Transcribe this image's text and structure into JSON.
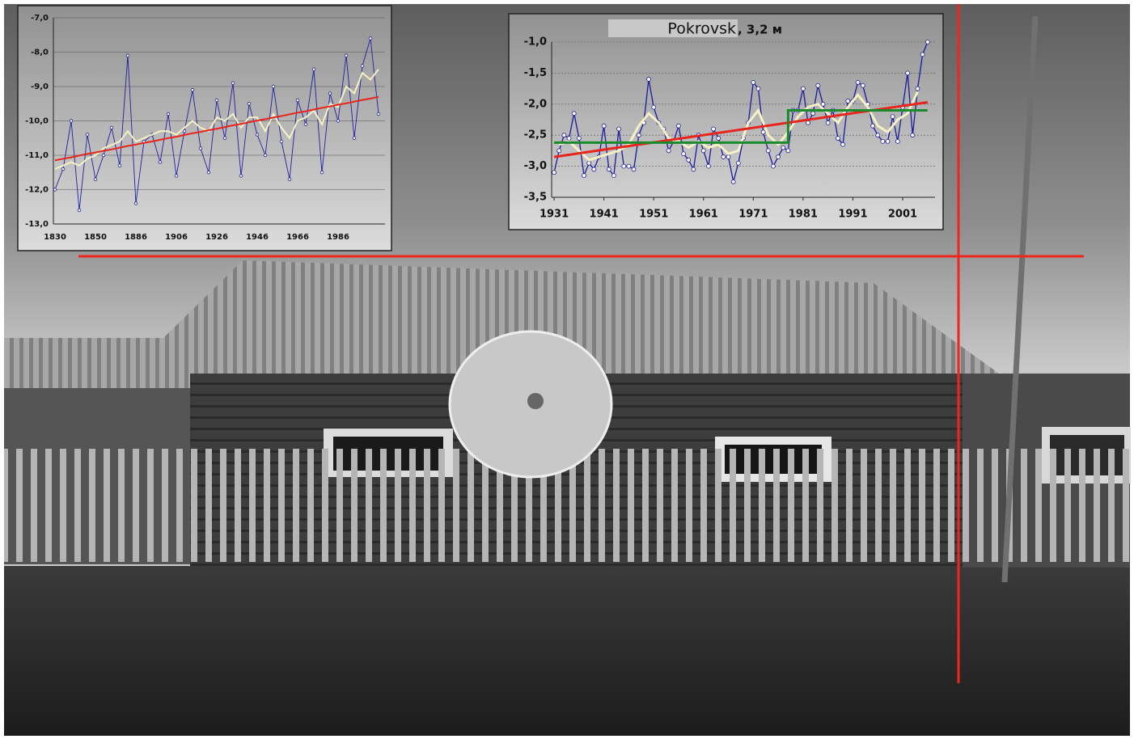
{
  "chart_data": [
    {
      "type": "line",
      "categories": [
        "1830",
        null,
        null,
        null,
        null,
        "1850",
        null,
        null,
        null,
        null,
        "1886",
        null,
        null,
        null,
        null,
        "1906",
        null,
        null,
        null,
        null,
        "1926",
        null,
        null,
        null,
        null,
        "1946",
        null,
        null,
        null,
        null,
        "1966",
        null,
        null,
        null,
        null,
        "1986",
        null,
        null,
        null,
        null,
        null
      ],
      "ylim": [
        -13,
        -7
      ],
      "yticks": [
        {
          "value": -13,
          "label": "-13,0"
        },
        {
          "value": -12,
          "label": "-12,0"
        },
        {
          "value": -11,
          "label": "-11,0"
        },
        {
          "value": -10,
          "label": "-10,0"
        },
        {
          "value": -9,
          "label": "-9,0"
        },
        {
          "value": -8,
          "label": "-8,0"
        },
        {
          "value": -7,
          "label": "-7,0"
        }
      ],
      "grid": true,
      "series": [
        {
          "color": "#1f1f9e",
          "markers": true,
          "values": [
            -12.0,
            -11.4,
            -10.0,
            -12.6,
            -10.4,
            -11.7,
            -11.0,
            -10.2,
            -11.3,
            -8.1,
            -12.4,
            -10.6,
            -10.4,
            -11.2,
            -9.8,
            -11.6,
            -10.3,
            -9.1,
            -10.8,
            -11.5,
            -9.4,
            -10.5,
            -8.9,
            -11.6,
            -9.5,
            -10.4,
            -11.0,
            -9.0,
            -10.6,
            -11.7,
            -9.4,
            -10.1,
            -8.5,
            -11.5,
            -9.2,
            -10.0,
            -8.1,
            -10.5,
            -8.4,
            -7.6,
            -9.8
          ]
        },
        {
          "color": "#f6f1c4",
          "values": [
            -11.4,
            -11.3,
            -11.2,
            -11.3,
            -11.1,
            -11.0,
            -10.8,
            -10.7,
            -10.6,
            -10.3,
            -10.6,
            -10.5,
            -10.4,
            -10.3,
            -10.3,
            -10.4,
            -10.2,
            -10.0,
            -10.2,
            -10.3,
            -9.9,
            -10.0,
            -9.8,
            -10.2,
            -9.9,
            -9.9,
            -10.3,
            -9.8,
            -10.2,
            -10.5,
            -10.0,
            -9.9,
            -9.7,
            -10.1,
            -9.5,
            -9.6,
            -9.0,
            -9.2,
            -8.6,
            -8.8,
            -8.5
          ]
        },
        {
          "color": "#e8241c",
          "values": [
            -11.15,
            -11.1,
            -11.06,
            -11.01,
            -10.96,
            -10.92,
            -10.87,
            -10.83,
            -10.78,
            -10.73,
            -10.69,
            -10.64,
            -10.6,
            -10.55,
            -10.5,
            -10.46,
            -10.41,
            -10.36,
            -10.32,
            -10.27,
            -10.23,
            -10.18,
            -10.13,
            -10.09,
            -10.04,
            -9.99,
            -9.95,
            -9.9,
            -9.86,
            -9.81,
            -9.76,
            -9.72,
            -9.67,
            -9.62,
            -9.58,
            -9.53,
            -9.49,
            -9.44,
            -9.39,
            -9.35,
            -9.3
          ]
        }
      ]
    },
    {
      "type": "line",
      "title": "Pokrovsk",
      "subtitle": ", 3,2 м",
      "xlim": [
        1930.5,
        2007.5
      ],
      "xticks": [
        1931,
        1941,
        1951,
        1961,
        1971,
        1981,
        1991,
        2001
      ],
      "ylim": [
        -3.5,
        -1.0
      ],
      "yticks": [
        {
          "value": -3.5,
          "label": "-3,5"
        },
        {
          "value": -3.0,
          "label": "-3,0"
        },
        {
          "value": -2.5,
          "label": "-2,5"
        },
        {
          "value": -2.0,
          "label": "-2,0"
        },
        {
          "value": -1.5,
          "label": "-1,5"
        },
        {
          "value": -1.0,
          "label": "-1,0"
        }
      ],
      "grid": true,
      "series": [
        {
          "color": "#1f1f9e",
          "markers": true,
          "x": [
            1931,
            1932,
            1933,
            1934,
            1935,
            1936,
            1937,
            1938,
            1939,
            1940,
            1941,
            1942,
            1943,
            1944,
            1945,
            1946,
            1947,
            1948,
            1949,
            1950,
            1951,
            1952,
            1953,
            1954,
            1955,
            1956,
            1957,
            1958,
            1959,
            1960,
            1961,
            1962,
            1963,
            1964,
            1965,
            1966,
            1967,
            1968,
            1969,
            1970,
            1971,
            1972,
            1973,
            1974,
            1975,
            1976,
            1977,
            1978,
            1979,
            1980,
            1981,
            1982,
            1983,
            1984,
            1985,
            1986,
            1987,
            1988,
            1989,
            1990,
            1991,
            1992,
            1993,
            1994,
            1995,
            1996,
            1997,
            1998,
            1999,
            2000,
            2001,
            2002,
            2003,
            2004,
            2005,
            2006
          ],
          "values": [
            -3.1,
            -2.75,
            -2.5,
            -2.55,
            -2.15,
            -2.55,
            -3.15,
            -2.95,
            -3.05,
            -2.85,
            -2.35,
            -3.05,
            -3.15,
            -2.4,
            -3.0,
            -3.0,
            -3.05,
            -2.5,
            -2.3,
            -1.6,
            -2.05,
            -2.3,
            -2.4,
            -2.75,
            -2.6,
            -2.35,
            -2.8,
            -2.9,
            -3.05,
            -2.5,
            -2.75,
            -3.0,
            -2.4,
            -2.55,
            -2.85,
            -2.85,
            -3.25,
            -2.95,
            -2.55,
            -2.3,
            -1.65,
            -1.75,
            -2.45,
            -2.75,
            -3.0,
            -2.85,
            -2.7,
            -2.75,
            -2.1,
            -2.1,
            -1.75,
            -2.3,
            -2.15,
            -1.7,
            -2.0,
            -2.3,
            -2.1,
            -2.55,
            -2.65,
            -1.95,
            -1.95,
            -1.65,
            -1.7,
            -2.0,
            -2.35,
            -2.5,
            -2.6,
            -2.6,
            -2.2,
            -2.6,
            -2.05,
            -1.5,
            -2.5,
            -1.75,
            -1.2,
            -1.0
          ]
        },
        {
          "color": "#f6f1c4",
          "x": [
            1932,
            1934,
            1936,
            1938,
            1940,
            1942,
            1944,
            1946,
            1948,
            1950,
            1952,
            1954,
            1956,
            1958,
            1960,
            1962,
            1964,
            1966,
            1968,
            1970,
            1972,
            1974,
            1976,
            1978,
            1980,
            1982,
            1984,
            1986,
            1988,
            1990,
            1992,
            1994,
            1996,
            1998,
            2000,
            2002,
            2004
          ],
          "values": [
            -2.65,
            -2.6,
            -2.75,
            -2.9,
            -2.85,
            -2.8,
            -2.75,
            -2.65,
            -2.35,
            -2.15,
            -2.3,
            -2.55,
            -2.6,
            -2.7,
            -2.6,
            -2.7,
            -2.65,
            -2.8,
            -2.75,
            -2.3,
            -2.1,
            -2.5,
            -2.65,
            -2.45,
            -2.2,
            -2.05,
            -2.0,
            -2.15,
            -2.3,
            -2.05,
            -1.85,
            -2.05,
            -2.35,
            -2.45,
            -2.25,
            -2.15,
            -1.8
          ]
        },
        {
          "color": "#e8241c",
          "x": [
            1931,
            2006
          ],
          "values": [
            -2.85,
            -1.97
          ]
        },
        {
          "color": "#1a8a2a",
          "x": [
            1931,
            1978,
            1978,
            2006
          ],
          "values": [
            -2.62,
            -2.62,
            -2.1,
            -2.1
          ]
        }
      ]
    }
  ]
}
